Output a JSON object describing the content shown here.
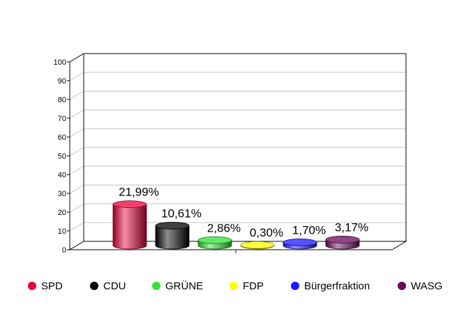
{
  "chart_data": {
    "type": "bar",
    "style": "3d-cylinder",
    "categories": [
      "SPD",
      "CDU",
      "GRÜNE",
      "FDP",
      "Bürgerfraktion",
      "WASG"
    ],
    "values": [
      21.99,
      10.61,
      2.86,
      0.3,
      1.7,
      3.17
    ],
    "data_labels": [
      "21,99%",
      "10,61%",
      "2,86%",
      "0,30%",
      "1,70%",
      "3,17%"
    ],
    "colors": [
      "#e8003a",
      "#000000",
      "#33e033",
      "#ffff00",
      "#1a1aff",
      "#6a0a5a"
    ],
    "ylim": [
      0,
      100
    ],
    "yticks": [
      0,
      10,
      20,
      30,
      40,
      50,
      60,
      70,
      80,
      90,
      100
    ],
    "grid": true,
    "legend_position": "bottom"
  }
}
